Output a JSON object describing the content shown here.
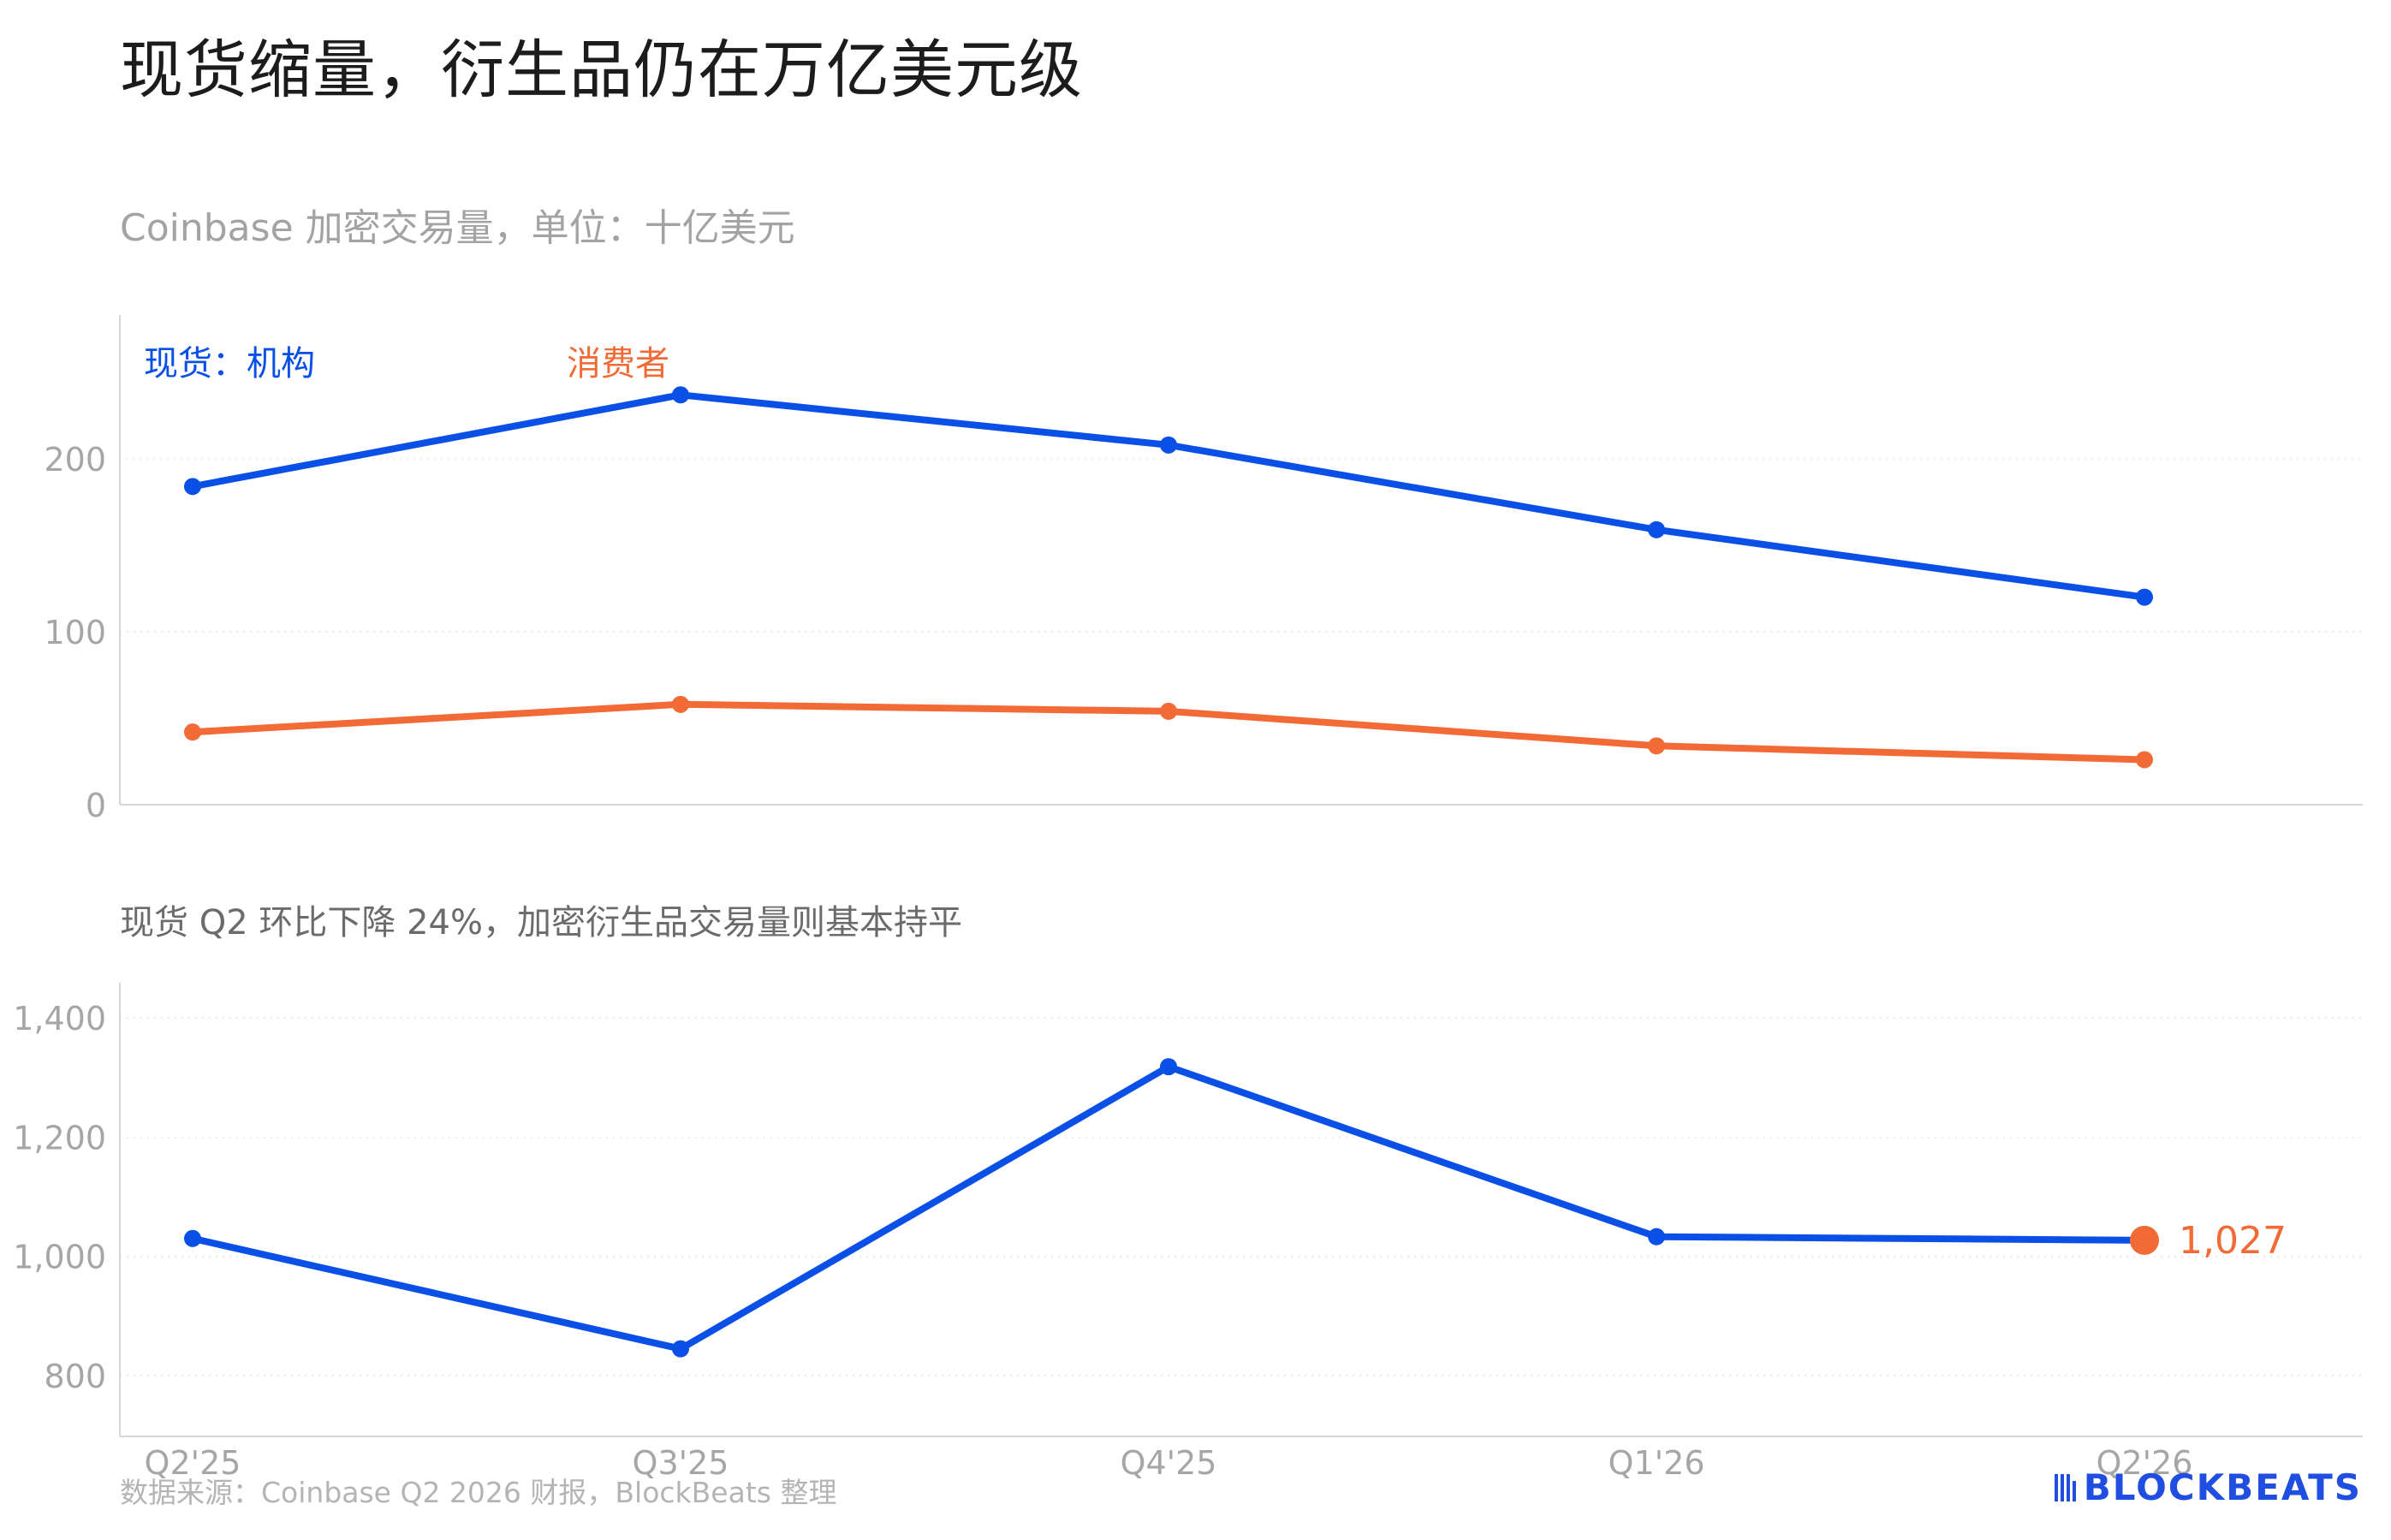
{
  "title": "现货缩量，衍生品仍在万亿美元级",
  "subtitle": "Coinbase 加密交易量，单位：十亿美元",
  "source": "数据来源：Coinbase Q2 2026 财报，BlockBeats 整理",
  "brand": "BLOCKBEATS",
  "colors": {
    "blue": "#0a50e6",
    "orange": "#f26b36",
    "axis": "#d6d6d6",
    "grid": "#ececec",
    "tick": "#a6a6a6",
    "brand": "#1f4ee0"
  },
  "chart_data": [
    {
      "type": "line",
      "title": "",
      "x": [
        "Q2'25",
        "Q3'25",
        "Q4'25",
        "Q1'26",
        "Q2'26"
      ],
      "ylim": [
        0,
        280
      ],
      "yticks": [
        {
          "value": 0,
          "label": "0"
        },
        {
          "value": 100,
          "label": "100"
        },
        {
          "value": 200,
          "label": "200"
        }
      ],
      "grid": true,
      "legend": "top-left",
      "series": [
        {
          "name": "现货：机构",
          "color": "#0a50e6",
          "values": [
            184,
            237,
            208,
            159,
            120
          ]
        },
        {
          "name": "消费者",
          "color": "#f26b36",
          "values": [
            42,
            58,
            54,
            34,
            26
          ]
        }
      ]
    },
    {
      "type": "line",
      "title": "现货 Q2 环比下降 24%，加密衍生品交易量则基本持平",
      "x": [
        "Q2'25",
        "Q3'25",
        "Q4'25",
        "Q1'26",
        "Q2'26"
      ],
      "ylim": [
        700,
        1450
      ],
      "yticks": [
        {
          "value": 800,
          "label": "800"
        },
        {
          "value": 1000,
          "label": "1,000"
        },
        {
          "value": 1200,
          "label": "1,200"
        },
        {
          "value": 1400,
          "label": "1,400"
        }
      ],
      "grid": true,
      "series": [
        {
          "color": "#0a50e6",
          "values": [
            1030,
            845,
            1318,
            1033,
            1027
          ]
        }
      ],
      "annotation": {
        "index": 4,
        "label": "1,027",
        "color": "#f26b36"
      }
    }
  ]
}
